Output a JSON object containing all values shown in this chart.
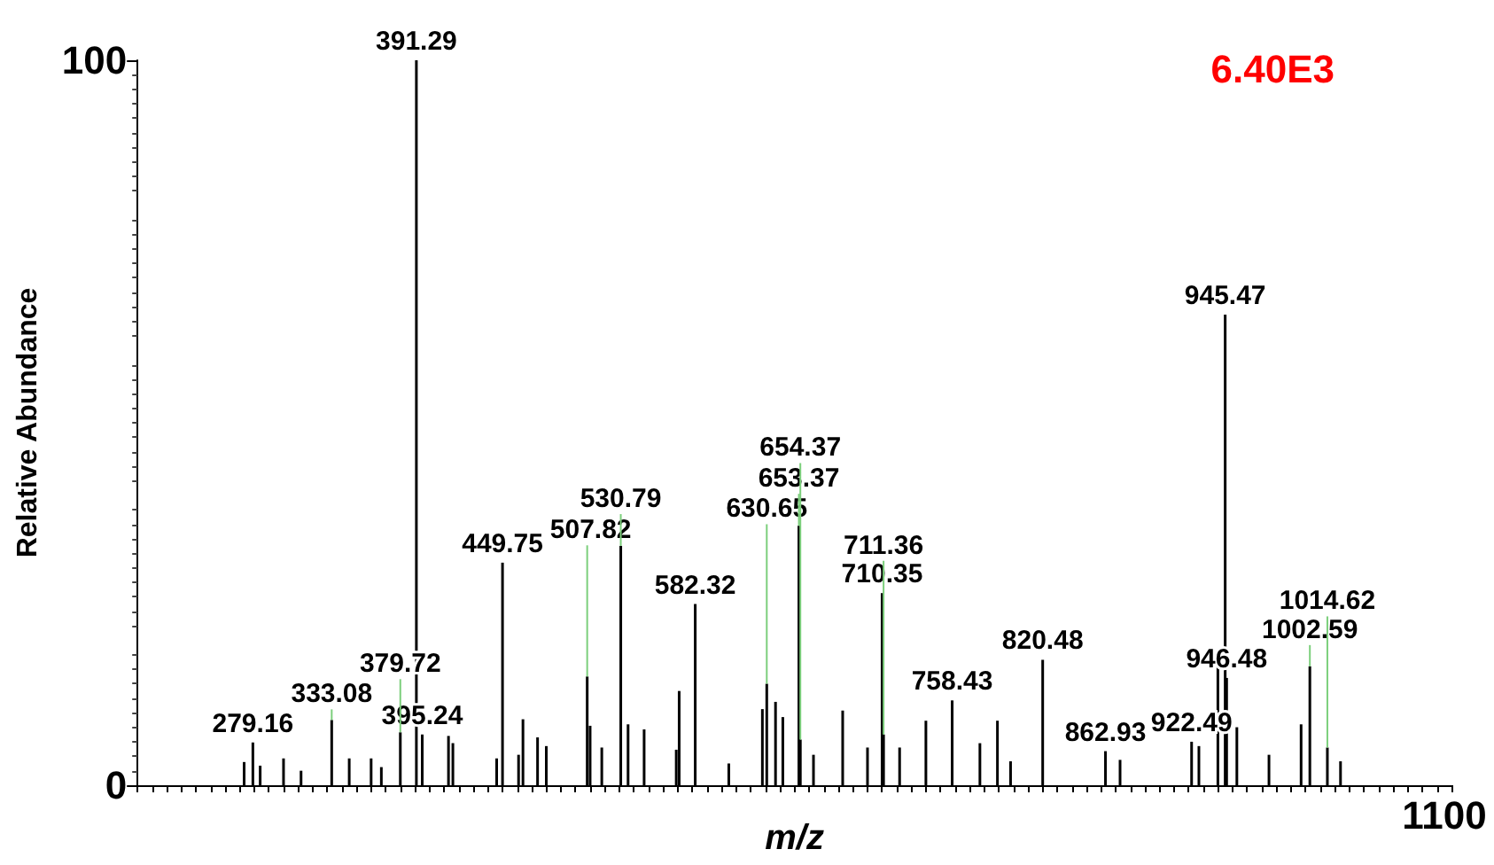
{
  "chart_data": {
    "type": "bar",
    "xlabel": "m/z",
    "ylabel": "Relative Abundance",
    "annotations": [
      "6.40E3",
      "1100",
      {
        "text": "279.16",
        "y": 5.9
      },
      {
        "text": "333.08",
        "y": 9
      },
      {
        "text": "379.72",
        "y": 7.3
      },
      {
        "text": "391.29",
        "y": 100
      },
      {
        "text": "395.24",
        "y": 7
      },
      {
        "text": "449.75",
        "y": 30.7
      },
      {
        "text": "507.82",
        "y": 15
      },
      {
        "text": "530.79",
        "y": 33
      },
      {
        "text": "582.32",
        "y": 25
      },
      {
        "text": "630.65",
        "y": 14
      },
      {
        "text": "653.37",
        "y": 35.8
      },
      {
        "text": "654.37",
        "y": 6.3
      },
      {
        "text": "710.35",
        "y": 26.5
      },
      {
        "text": "711.36",
        "y": 7
      },
      {
        "text": "758.43",
        "y": 11.7
      },
      {
        "text": "820.48",
        "y": 17.3
      },
      {
        "text": "862.93",
        "y": 4.7
      },
      {
        "text": "922.49",
        "y": 6
      },
      {
        "text": "945.47",
        "y": 64.9
      },
      {
        "text": "946.48",
        "y": 14.8
      },
      {
        "text": "1002.59",
        "y": 16.4
      },
      {
        "text": "1014.62",
        "y": 5.2
      }
    ],
    "categories": [
      null,
      null,
      null,
      null,
      null,
      null,
      null,
      null,
      null,
      null,
      null,
      null,
      null,
      null,
      null,
      null,
      null,
      null,
      null,
      null,
      null,
      null,
      null,
      null,
      null,
      null,
      null,
      null,
      null,
      null,
      null,
      null,
      null,
      null,
      null,
      null,
      null,
      null,
      null,
      null,
      null,
      null,
      null,
      null,
      null,
      null,
      null,
      null,
      null,
      null,
      null,
      null,
      null,
      null,
      null,
      null,
      null,
      null,
      null,
      null,
      null,
      null,
      null,
      null,
      null,
      null,
      null,
      null,
      null,
      null,
      null,
      null,
      null,
      null,
      null,
      null,
      null,
      null,
      null,
      null,
      null,
      null,
      null,
      null,
      null,
      null,
      null,
      null,
      null,
      null,
      null,
      null,
      null,
      null,
      null,
      null,
      null,
      null,
      null,
      null,
      null,
      null,
      null,
      null,
      null,
      null,
      null,
      null,
      null,
      null,
      null,
      null,
      null,
      null,
      null,
      null,
      null,
      null,
      null,
      null,
      null,
      null,
      null,
      null,
      null,
      null,
      null,
      null,
      null,
      null,
      null,
      null,
      null,
      null,
      null,
      null,
      null,
      null,
      null,
      null,
      null,
      null,
      null,
      null,
      null,
      null,
      null,
      null,
      null,
      null,
      null,
      null,
      null,
      null,
      null,
      null,
      null,
      null,
      null,
      null,
      null,
      null,
      null,
      null,
      null,
      null,
      null,
      null,
      null,
      null,
      null,
      null,
      null,
      null,
      null,
      null,
      null,
      null,
      null,
      null,
      null,
      null,
      null,
      null,
      null,
      null,
      null,
      null,
      null,
      null,
      null,
      null,
      null,
      null,
      null,
      null,
      null,
      null,
      null,
      null,
      null,
      null,
      null,
      null,
      null,
      null,
      null,
      null,
      null,
      null,
      null,
      null,
      null,
      null,
      null,
      null,
      null,
      null,
      null,
      null,
      null,
      null,
      null,
      null,
      null,
      null,
      null,
      null,
      null,
      null,
      null,
      null,
      null,
      null,
      null,
      null,
      null,
      null,
      null,
      null,
      null,
      null,
      null,
      null,
      null,
      null,
      null,
      null,
      null,
      null,
      null,
      null,
      null,
      null,
      null,
      null,
      null,
      null,
      null,
      null,
      null,
      null,
      null,
      null,
      null,
      null,
      null,
      null,
      null,
      null,
      null,
      null,
      null,
      null,
      null,
      null,
      null,
      null,
      null,
      null,
      null,
      null,
      null,
      null,
      null,
      null,
      null,
      null,
      null,
      null,
      null,
      null,
      null,
      null,
      null,
      null,
      null,
      null,
      null,
      null,
      null,
      null,
      null,
      null,
      null,
      null,
      null,
      null,
      null,
      null,
      null,
      null,
      null,
      null,
      null,
      null,
      null,
      null,
      null,
      null,
      null,
      null,
      null,
      null,
      null,
      null,
      null,
      null,
      null,
      null,
      null,
      null,
      null,
      null,
      null,
      null,
      null,
      null,
      null,
      null,
      null,
      null,
      null,
      null,
      null,
      null,
      null,
      null,
      null,
      null,
      null,
      null,
      null,
      null,
      null,
      null,
      null,
      null,
      null,
      null,
      null,
      null,
      null,
      null,
      null,
      null,
      null,
      null,
      null,
      null,
      null,
      null,
      null,
      null,
      null,
      null,
      null,
      null,
      null,
      null,
      null,
      null,
      null,
      null,
      null,
      null,
      null,
      null,
      null,
      null,
      null,
      null,
      null,
      null,
      null,
      null,
      null,
      null,
      null,
      null,
      null,
      null,
      null,
      null,
      null,
      null,
      null,
      null,
      null,
      null,
      null,
      null,
      null,
      null,
      null,
      null,
      null,
      null,
      null,
      null,
      null,
      null,
      null,
      null,
      null,
      null,
      null,
      null,
      null,
      null,
      null,
      null,
      null,
      null,
      null,
      null,
      null,
      null,
      null,
      null,
      null,
      null,
      null,
      null,
      null,
      null,
      null,
      null,
      null,
      null,
      null,
      null,
      null,
      null,
      null,
      null,
      null,
      null,
      null,
      null,
      null,
      null,
      null,
      null,
      null,
      null,
      null,
      null,
      null,
      null,
      null,
      null,
      null,
      null,
      null,
      null,
      null,
      null,
      null,
      null,
      null,
      null,
      null,
      null,
      null,
      null,
      null,
      null,
      null,
      null,
      null,
      null,
      null,
      null,
      null,
      null,
      null,
      null,
      null,
      null,
      null,
      null,
      null,
      null,
      null,
      null,
      null,
      null,
      null,
      null,
      null,
      null,
      null,
      null,
      null,
      null,
      null,
      null,
      null,
      null,
      null,
      null,
      null,
      null,
      null,
      null,
      null,
      null,
      null,
      null,
      null,
      null,
      null,
      null,
      null,
      null,
      null,
      null,
      null,
      null,
      null,
      null,
      null,
      null,
      null,
      null,
      null,
      null,
      null,
      null,
      null,
      null,
      null,
      null,
      null,
      null,
      null,
      null,
      null,
      null,
      null,
      null,
      null,
      null,
      null,
      null,
      null,
      null,
      null,
      null,
      null,
      null,
      null,
      null,
      null,
      null,
      null,
      null,
      null,
      null,
      null,
      null,
      null,
      null,
      null,
      null,
      null,
      null,
      null,
      null,
      null,
      null,
      null,
      null,
      null,
      null,
      null,
      null,
      null,
      null,
      null,
      null,
      null,
      null,
      null,
      null,
      null,
      null,
      null,
      null,
      null,
      null,
      null,
      null,
      null,
      null,
      null,
      null,
      null,
      null,
      null,
      null,
      null,
      null,
      null,
      null,
      null,
      null,
      null,
      null,
      null,
      null,
      null,
      null,
      null,
      null,
      null,
      null,
      null,
      null,
      null,
      null,
      null,
      null,
      null,
      null,
      null,
      null,
      null,
      null,
      null,
      null,
      null,
      null,
      null,
      null,
      null,
      null,
      null,
      null,
      null,
      null,
      null,
      null,
      null,
      null,
      null,
      null,
      null,
      null,
      null,
      null,
      null,
      null,
      null,
      null,
      null,
      null,
      null,
      null,
      null,
      null,
      null,
      null,
      null,
      null,
      null,
      null,
      null,
      null,
      null,
      null,
      null,
      null,
      null,
      null,
      null,
      null,
      null,
      null,
      null,
      null,
      null,
      null,
      null,
      null,
      null,
      null,
      null,
      null,
      null,
      null,
      null,
      null,
      null,
      null,
      null,
      null,
      null,
      null,
      null,
      null,
      null,
      null,
      null,
      null,
      null,
      null,
      null,
      null,
      null,
      null,
      null,
      null,
      null,
      null,
      null,
      null,
      null,
      null,
      null,
      null,
      null,
      null,
      null,
      null,
      null,
      null,
      null,
      null,
      null,
      null,
      null,
      null,
      null,
      null,
      null,
      null,
      null,
      null,
      null,
      null,
      null,
      null,
      null,
      null,
      null,
      null,
      null,
      null,
      null,
      null,
      null,
      null,
      null,
      null,
      null,
      null,
      null,
      null,
      null,
      null,
      null,
      null,
      null,
      null,
      null,
      null,
      null,
      null,
      null,
      null,
      null,
      null,
      null,
      null,
      null,
      null,
      null,
      null,
      null,
      null,
      null,
      null,
      null,
      null,
      null,
      null,
      null,
      null,
      null,
      null,
      null,
      null,
      null,
      null,
      null,
      null,
      null,
      null,
      null,
      null,
      null,
      null,
      null,
      null,
      null,
      null,
      null,
      null,
      null,
      null,
      null,
      null,
      null,
      null,
      null,
      null,
      null,
      null,
      null,
      null,
      null,
      null,
      null,
      null,
      null,
      null,
      null,
      null,
      null,
      null,
      null,
      null,
      null,
      null,
      null,
      null,
      null,
      null,
      null,
      null,
      null,
      null,
      null,
      null,
      null,
      null,
      null,
      null,
      null,
      null,
      null,
      null,
      null,
      null,
      null,
      null,
      null,
      null,
      null,
      null,
      null,
      null,
      null,
      null,
      null,
      null,
      null,
      null,
      null,
      null,
      null,
      null,
      null,
      null,
      null,
      null,
      null,
      null,
      null
    ],
    "values": [
      null,
      null,
      null,
      null,
      null,
      null,
      null,
      null,
      null,
      null,
      null,
      null,
      null,
      null,
      null,
      null,
      null,
      null,
      null,
      null,
      null,
      null,
      null,
      null,
      null,
      null,
      null,
      null,
      null,
      null,
      null,
      null,
      null,
      null,
      null,
      null,
      null,
      null,
      null,
      null,
      null,
      null,
      null,
      null,
      null,
      null,
      null,
      null,
      null,
      null,
      null,
      null,
      null,
      null,
      null,
      null,
      null,
      null,
      null,
      null,
      null,
      null,
      null,
      null,
      null,
      null,
      null,
      null,
      null,
      null,
      null,
      null,
      null,
      3.2,
      null,
      null,
      null,
      null,
      null,
      5.9,
      null,
      null,
      null,
      null,
      2.7,
      null,
      null,
      null,
      null,
      null,
      null,
      null,
      null,
      null,
      null,
      null,
      null,
      null,
      null,
      null,
      3.7,
      null,
      null,
      null,
      null,
      null,
      null,
      null,
      null,
      null,
      null,
      null,
      2,
      null,
      null,
      null,
      null,
      null,
      null,
      null,
      null,
      null,
      null,
      null,
      null,
      null,
      null,
      null,
      null,
      null,
      null,
      null,
      null,
      9,
      null,
      null,
      null,
      null,
      null,
      null,
      null,
      null,
      null,
      null,
      null,
      3.7,
      null,
      null,
      null,
      null,
      null,
      null,
      null,
      null,
      null,
      null,
      null,
      null,
      null,
      null,
      3.7,
      null,
      null,
      null,
      null,
      null,
      null,
      2.5,
      null,
      null,
      null,
      null,
      null,
      null,
      null,
      null,
      null,
      null,
      null,
      null,
      7.3,
      null,
      null,
      null,
      null,
      null,
      null,
      null,
      null,
      null,
      null,
      100,
      null,
      null,
      null,
      7,
      null,
      null,
      null,
      null,
      null,
      null,
      null,
      null,
      null,
      null,
      null,
      null,
      null,
      null,
      null,
      null,
      null,
      6.8,
      null,
      null,
      5.8,
      null,
      null,
      null,
      null,
      null,
      null,
      null,
      null,
      null,
      null,
      null,
      null,
      null,
      null,
      null,
      null,
      null,
      null,
      null,
      null,
      null,
      null,
      null,
      null,
      null,
      null,
      null,
      null,
      null,
      3.7,
      null,
      null,
      null,
      30.7,
      null,
      null,
      null,
      null,
      null,
      null,
      null,
      null,
      null,
      null,
      4.2,
      null,
      null,
      9.1,
      null,
      null,
      null,
      null,
      null,
      null,
      null,
      null,
      null,
      6.6,
      null,
      null,
      null,
      null,
      null,
      5.4,
      null,
      null,
      null,
      null,
      null,
      null,
      null,
      null,
      null,
      null,
      null,
      null,
      null,
      null,
      null,
      null,
      null,
      null,
      null,
      null,
      null,
      null,
      null,
      null,
      null,
      null,
      null,
      15,
      null,
      8.2,
      null,
      null,
      null,
      null,
      null,
      null,
      null,
      5.2,
      null,
      null,
      null,
      null,
      null,
      null,
      null,
      null,
      null,
      null,
      null,
      null,
      33,
      null,
      null,
      null,
      null,
      8.4,
      null,
      null,
      null,
      null,
      null,
      null,
      null,
      null,
      null,
      null,
      7.7,
      null,
      null,
      null,
      null,
      null,
      null,
      null,
      null,
      null,
      null,
      null,
      null,
      null,
      null,
      null,
      null,
      null,
      null,
      null,
      null,
      null,
      4.9,
      null,
      13,
      null,
      null,
      null,
      null,
      null,
      null,
      null,
      null,
      null,
      null,
      25,
      null,
      null,
      null,
      null,
      null,
      null,
      null,
      null,
      null,
      null,
      null,
      null,
      null,
      null,
      null,
      null,
      null,
      null,
      null,
      null,
      null,
      null,
      3,
      null,
      null,
      null,
      null,
      null,
      null,
      null,
      null,
      null,
      null,
      null,
      null,
      null,
      null,
      null,
      null,
      null,
      null,
      null,
      null,
      null,
      null,
      10.5,
      null,
      null,
      14,
      null,
      null,
      null,
      null,
      null,
      11.5,
      null,
      null,
      null,
      null,
      9.4,
      null,
      null,
      null,
      null,
      null,
      null,
      null,
      null,
      null,
      null,
      35.8,
      6.3,
      null,
      null,
      null,
      null,
      null,
      null,
      null,
      null,
      4.2,
      null,
      null,
      null,
      null,
      null,
      null,
      null,
      null,
      null,
      null,
      null,
      null,
      null,
      null,
      null,
      null,
      null,
      null,
      null,
      10.3,
      null,
      null,
      null,
      null,
      null,
      null,
      null,
      null,
      null,
      null,
      null,
      null,
      null,
      null,
      null,
      null,
      5.2,
      null,
      null,
      null,
      null,
      null,
      null,
      null,
      null,
      null,
      26.5,
      7,
      null,
      null,
      null,
      null,
      null,
      null,
      null,
      null,
      null,
      null,
      5.2,
      null,
      null,
      null,
      null,
      null,
      null,
      null,
      null,
      null,
      null,
      null,
      null,
      null,
      null,
      null,
      null,
      null,
      8.9,
      null,
      null,
      null,
      null,
      null,
      null,
      null,
      null,
      null,
      null,
      null,
      null,
      null,
      null,
      null,
      null,
      null,
      11.7,
      null,
      null,
      null,
      null,
      null,
      null,
      null,
      null,
      null,
      null,
      null,
      null,
      null,
      null,
      null,
      null,
      null,
      null,
      5.8,
      null,
      null,
      null,
      null,
      null,
      null,
      null,
      null,
      null,
      null,
      null,
      8.9,
      null,
      null,
      null,
      null,
      null,
      null,
      null,
      null,
      3.3,
      null,
      null,
      null,
      null,
      null,
      null,
      null,
      null,
      null,
      null,
      null,
      null,
      null,
      null,
      null,
      null,
      null,
      null,
      null,
      null,
      null,
      17.3,
      null,
      null,
      null,
      null,
      null,
      null,
      null,
      null,
      null,
      null,
      null,
      null,
      null,
      null,
      null,
      null,
      null,
      null,
      null,
      null,
      null,
      null,
      null,
      null,
      null,
      null,
      null,
      null,
      null,
      null,
      null,
      null,
      null,
      null,
      null,
      null,
      null,
      null,
      null,
      null,
      null,
      null,
      4.7,
      null,
      null,
      null,
      null,
      null,
      null,
      null,
      null,
      null,
      3.5,
      null,
      null,
      null,
      null,
      null,
      null,
      null,
      null,
      null,
      null,
      null,
      null,
      null,
      null,
      null,
      null,
      null,
      null,
      null,
      null,
      null,
      null,
      null,
      null,
      null,
      null,
      null,
      null,
      null,
      null,
      null,
      null,
      null,
      null,
      null,
      null,
      null,
      null,
      null,
      null,
      null,
      null,
      null,
      null,
      null,
      null,
      null,
      null,
      6,
      null,
      null,
      null,
      null,
      5.4,
      null,
      null,
      null,
      null,
      null,
      null,
      null,
      null,
      null,
      null,
      null,
      null,
      16.6,
      null,
      null,
      null,
      null,
      64.9,
      14.8,
      null,
      null,
      null,
      null,
      null,
      null,
      8,
      null,
      null,
      null,
      null,
      null,
      null,
      null,
      null,
      null,
      null,
      null,
      null,
      null,
      null,
      null,
      null,
      null,
      null,
      null,
      null,
      null,
      4.2,
      null,
      null,
      null,
      null,
      null,
      null,
      null,
      null,
      null,
      null,
      null,
      null,
      null,
      null,
      null,
      null,
      null,
      null,
      null,
      null,
      null,
      8.4,
      null,
      null,
      null,
      null,
      null,
      16.4,
      null,
      null,
      null,
      null,
      null,
      null,
      null,
      null,
      null,
      null,
      null,
      5.2,
      null,
      null,
      null,
      null,
      null,
      null,
      null,
      null,
      3.3,
      null,
      null,
      null,
      null,
      null,
      null,
      null,
      null,
      null,
      null,
      null,
      null,
      null,
      null,
      null,
      null,
      null,
      null,
      null,
      null,
      null,
      null,
      null,
      null,
      null,
      null,
      null,
      null,
      null,
      null,
      null,
      null,
      null,
      null,
      null,
      null,
      null,
      null,
      null,
      null,
      null,
      null,
      null,
      null,
      null,
      null,
      null,
      null,
      null,
      null,
      null,
      null,
      null,
      null,
      null,
      null,
      null,
      null,
      null,
      null,
      null,
      null,
      null,
      null,
      null,
      null,
      null,
      null,
      null,
      null,
      null,
      null,
      null,
      null,
      null,
      null
    ],
    "color": "#000000",
    "ylim": [
      0,
      100
    ],
    "yticks": [
      0,
      100
    ]
  }
}
